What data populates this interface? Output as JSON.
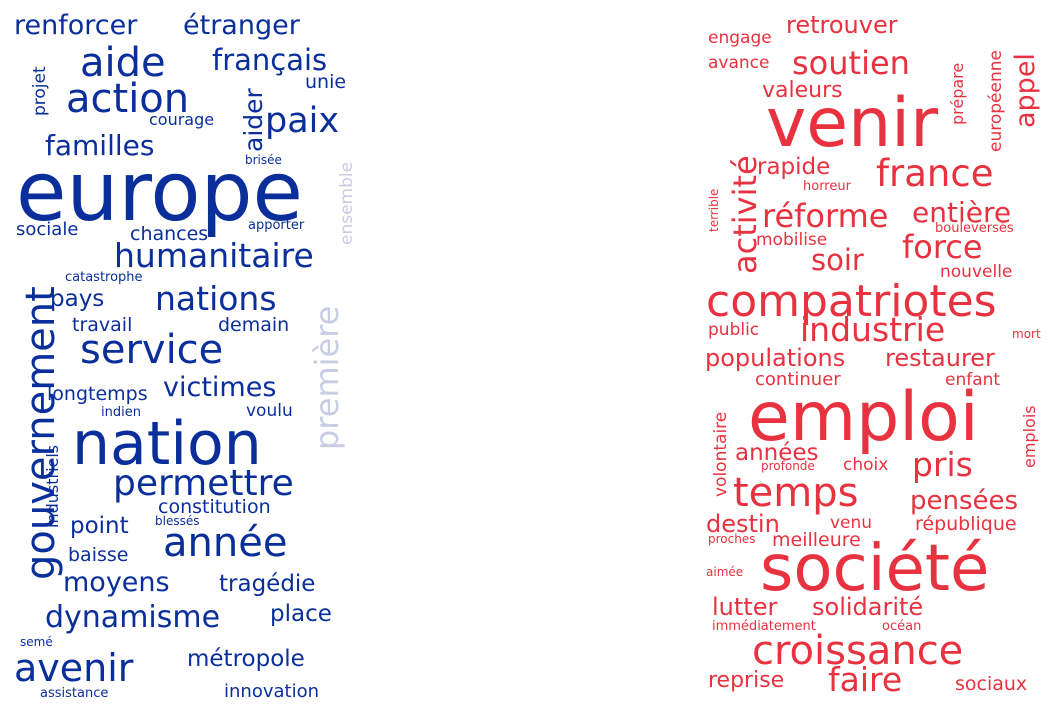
{
  "colors": {
    "blue": "#0a2f9b",
    "blue_light": "#c9cde3",
    "red": "#e8323f",
    "red_light": "#f07a82"
  },
  "left": {
    "words": [
      "renforcer",
      "étranger",
      "aide",
      "français",
      "action",
      "unie",
      "projet",
      "paix",
      "aider",
      "courage",
      "familles",
      "brisée",
      "europe",
      "ensemble",
      "sociale",
      "chances",
      "apporter",
      "gouvernement",
      "humanitaire",
      "catastrophe",
      "pays",
      "nations",
      "travail",
      "demain",
      "service",
      "première",
      "longtemps",
      "victimes",
      "indien",
      "voulu",
      "industriels",
      "nation",
      "permettre",
      "constitution",
      "point",
      "blessés",
      "année",
      "baisse",
      "moyens",
      "tragédie",
      "dynamisme",
      "place",
      "semé",
      "avenir",
      "métropole",
      "assistance",
      "innovation"
    ]
  },
  "right": {
    "words": [
      "engage",
      "retrouver",
      "prépare",
      "avance",
      "soutien",
      "valeurs",
      "appel",
      "européenne",
      "venir",
      "activité",
      "rapide",
      "terrible",
      "horreur",
      "france",
      "réforme",
      "entière",
      "mobilise",
      "bouleversés",
      "soir",
      "force",
      "nouvelle",
      "compatriotes",
      "public",
      "industrie",
      "mort",
      "populations",
      "restaurer",
      "continuer",
      "enfant",
      "volontaire",
      "emploi",
      "emplois",
      "années",
      "profonde",
      "choix",
      "pris",
      "temps",
      "pensées",
      "destin",
      "venu",
      "république",
      "proches",
      "meilleure",
      "aimée",
      "société",
      "lutter",
      "solidarité",
      "immédiatement",
      "océan",
      "croissance",
      "reprise",
      "faire",
      "sociaux"
    ]
  }
}
